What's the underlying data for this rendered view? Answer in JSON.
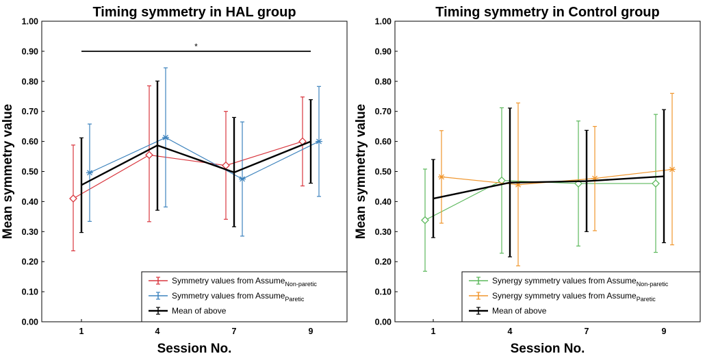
{
  "chart_data": [
    {
      "type": "line",
      "title": "Timing symmetry in HAL group",
      "xlabel": "Session No.",
      "ylabel": "Mean symmetry value",
      "categories": [
        "1",
        "4",
        "7",
        "9"
      ],
      "yticks": [
        "0.00",
        "0.10",
        "0.20",
        "0.30",
        "0.40",
        "0.50",
        "0.60",
        "0.70",
        "0.80",
        "0.90",
        "1.00"
      ],
      "ylim": [
        0,
        1
      ],
      "grid": false,
      "legend_position": "bottom-right",
      "significance": {
        "from": "1",
        "to": "9",
        "y": 0.9,
        "label": "*"
      },
      "series": [
        {
          "name": "Symmetry values from Assume",
          "name_sub": "Non-paretic",
          "color": "#d9363e",
          "marker": "diamond",
          "values": [
            0.41,
            0.555,
            0.52,
            0.6
          ],
          "err_low": [
            0.236,
            0.333,
            0.341,
            0.452
          ],
          "err_high": [
            0.588,
            0.785,
            0.7,
            0.748
          ]
        },
        {
          "name": "Symmetry values from Assume",
          "name_sub": "Paretic",
          "color": "#3d83bd",
          "marker": "asterisk",
          "values": [
            0.496,
            0.613,
            0.475,
            0.6
          ],
          "err_low": [
            0.334,
            0.382,
            0.285,
            0.417
          ],
          "err_high": [
            0.658,
            0.845,
            0.665,
            0.783
          ]
        },
        {
          "name": "Mean of above",
          "name_sub": "",
          "color": "#000000",
          "marker": "none",
          "values": [
            0.455,
            0.587,
            0.497,
            0.6
          ],
          "err_low": [
            0.297,
            0.371,
            0.316,
            0.461
          ],
          "err_high": [
            0.612,
            0.801,
            0.68,
            0.739
          ]
        }
      ]
    },
    {
      "type": "line",
      "title": "Timing symmetry in Control group",
      "xlabel": "Session No.",
      "ylabel": "Mean symmetry value",
      "categories": [
        "1",
        "4",
        "7",
        "9"
      ],
      "yticks": [
        "0.00",
        "0.10",
        "0.20",
        "0.30",
        "0.40",
        "0.50",
        "0.60",
        "0.70",
        "0.80",
        "0.90",
        "1.00"
      ],
      "ylim": [
        0,
        1
      ],
      "grid": false,
      "legend_position": "bottom-right",
      "series": [
        {
          "name": "Synergy symmetry values from Assume",
          "name_sub": "Non-paretic",
          "color": "#5cb85c",
          "marker": "diamond",
          "values": [
            0.338,
            0.47,
            0.46,
            0.46
          ],
          "err_low": [
            0.168,
            0.228,
            0.252,
            0.231
          ],
          "err_high": [
            0.508,
            0.712,
            0.668,
            0.69
          ]
        },
        {
          "name": "Synergy symmetry values from Assume",
          "name_sub": "Paretic",
          "color": "#f0962d",
          "marker": "asterisk",
          "values": [
            0.482,
            0.456,
            0.477,
            0.507
          ],
          "err_low": [
            0.328,
            0.186,
            0.303,
            0.256
          ],
          "err_high": [
            0.636,
            0.728,
            0.65,
            0.76
          ]
        },
        {
          "name": "Mean of above",
          "name_sub": "",
          "color": "#000000",
          "marker": "none",
          "values": [
            0.41,
            0.463,
            0.468,
            0.484
          ],
          "err_low": [
            0.28,
            0.216,
            0.3,
            0.263
          ],
          "err_high": [
            0.54,
            0.711,
            0.637,
            0.706
          ]
        }
      ]
    }
  ]
}
